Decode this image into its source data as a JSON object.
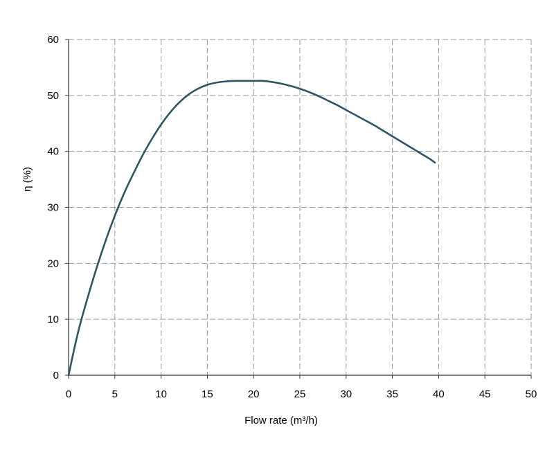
{
  "chart_data": {
    "type": "line",
    "title": "",
    "xlabel": "Flow rate (m³/h)",
    "ylabel": "η (%)",
    "xlim": [
      0,
      50
    ],
    "ylim": [
      0,
      60
    ],
    "x_ticks": [
      0,
      5,
      10,
      15,
      20,
      25,
      30,
      35,
      40,
      45,
      50
    ],
    "y_ticks": [
      0,
      10,
      20,
      30,
      40,
      50,
      60
    ],
    "grid": true,
    "legend": "none",
    "series": [
      {
        "color": "#2e5560",
        "x": [
          0,
          1,
          2,
          3,
          4,
          5,
          6,
          7,
          8,
          9,
          10,
          11,
          12,
          13,
          14,
          15,
          16,
          17,
          18,
          19,
          20,
          21,
          22,
          23,
          24,
          25,
          26,
          27,
          28,
          29,
          30,
          31,
          32,
          33,
          34,
          35,
          36,
          37,
          38,
          39,
          39.6
        ],
        "y": [
          0,
          7.5,
          13.5,
          19,
          24,
          28.5,
          32.5,
          36,
          39.3,
          42.2,
          44.8,
          47,
          48.8,
          50.2,
          51.2,
          51.9,
          52.3,
          52.5,
          52.6,
          52.6,
          52.6,
          52.6,
          52.4,
          52.1,
          51.7,
          51.2,
          50.6,
          49.9,
          49.1,
          48.3,
          47.4,
          46.5,
          45.6,
          44.7,
          43.7,
          42.7,
          41.7,
          40.7,
          39.7,
          38.7,
          38
        ]
      }
    ]
  }
}
